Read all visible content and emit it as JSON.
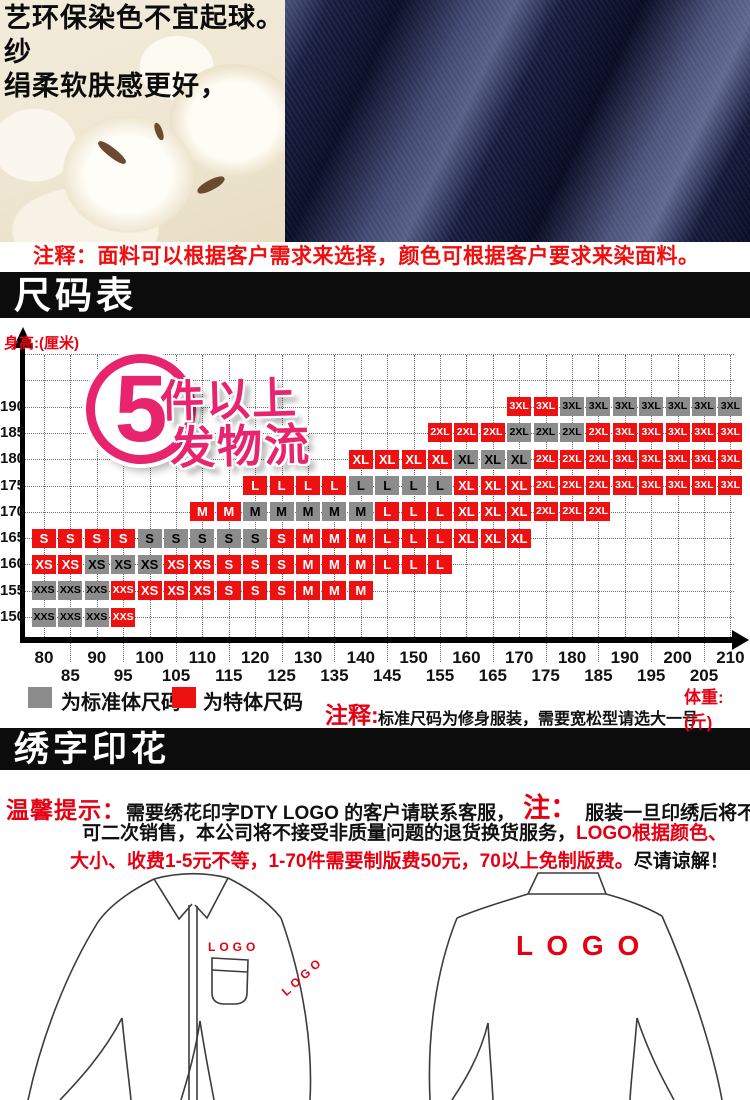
{
  "colors": {
    "special_red": "#ee1111",
    "standard_gray": "#8c8c8c",
    "accent_pink": "#e8246e",
    "note_red": "#e60012",
    "banner_bg": "#0c0c0c"
  },
  "top": {
    "caption_line1": "艺环保染色不宜起球。纱",
    "caption_line2": "绢柔软肤感更好，"
  },
  "fabric_note": "注释：面料可以根据客户需求来选择，颜色可根据客户要求来染面料。",
  "section1_title": "尺码表",
  "chart_data": {
    "type": "heatmap",
    "title": "尺码表",
    "x_axis": {
      "label": "体重:(斤)",
      "min": 80,
      "max": 210,
      "step": 5
    },
    "y_axis": {
      "label": "身高:(厘米)",
      "ticks": [
        150,
        155,
        160,
        165,
        170,
        175,
        180,
        185,
        190
      ]
    },
    "badge": {
      "number": "5",
      "text1": "件以上",
      "text2": "发物流"
    },
    "legend": [
      {
        "type": "standard",
        "label": "为标准体尺码"
      },
      {
        "type": "special",
        "label": "为特体尺码"
      }
    ],
    "note_prefix": "注释:",
    "note": "标准尺码为修身服装，需要宽松型请选大一号",
    "rows": [
      {
        "height": 190,
        "start": 170,
        "runs": [
          [
            "3XL",
            2,
            "special"
          ],
          [
            "3XL",
            7,
            "standard"
          ]
        ]
      },
      {
        "height": 185,
        "start": 155,
        "runs": [
          [
            "2XL",
            3,
            "special"
          ],
          [
            "2XL",
            3,
            "standard"
          ],
          [
            "2XL",
            1,
            "special"
          ],
          [
            "3XL",
            5,
            "special"
          ]
        ]
      },
      {
        "height": 180,
        "start": 140,
        "runs": [
          [
            "XL",
            4,
            "special"
          ],
          [
            "XL",
            3,
            "standard"
          ],
          [
            "2XL",
            3,
            "special"
          ],
          [
            "3XL",
            5,
            "special"
          ]
        ]
      },
      {
        "height": 175,
        "start": 120,
        "runs": [
          [
            "L",
            4,
            "special"
          ],
          [
            "L",
            4,
            "standard"
          ],
          [
            "XL",
            3,
            "special"
          ],
          [
            "2XL",
            3,
            "special"
          ],
          [
            "3XL",
            5,
            "special"
          ]
        ]
      },
      {
        "height": 170,
        "start": 110,
        "runs": [
          [
            "M",
            2,
            "special"
          ],
          [
            "M",
            5,
            "standard"
          ],
          [
            "L",
            3,
            "special"
          ],
          [
            "XL",
            3,
            "special"
          ],
          [
            "2XL",
            3,
            "special"
          ]
        ]
      },
      {
        "height": 165,
        "start": 80,
        "runs": [
          [
            "S",
            4,
            "special"
          ],
          [
            "S",
            5,
            "standard"
          ],
          [
            "S",
            1,
            "special"
          ],
          [
            "M",
            3,
            "special"
          ],
          [
            "L",
            3,
            "special"
          ],
          [
            "XL",
            3,
            "special"
          ]
        ]
      },
      {
        "height": 160,
        "start": 80,
        "runs": [
          [
            "XS",
            2,
            "special"
          ],
          [
            "XS",
            3,
            "standard"
          ],
          [
            "XS",
            2,
            "special"
          ],
          [
            "S",
            3,
            "special"
          ],
          [
            "M",
            3,
            "special"
          ],
          [
            "L",
            3,
            "special"
          ]
        ]
      },
      {
        "height": 155,
        "start": 80,
        "runs": [
          [
            "XXS",
            3,
            "standard"
          ],
          [
            "XXS",
            1,
            "special"
          ],
          [
            "XS",
            3,
            "special"
          ],
          [
            "S",
            3,
            "special"
          ],
          [
            "M",
            3,
            "special"
          ]
        ]
      },
      {
        "height": 150,
        "start": 80,
        "runs": [
          [
            "XXS",
            3,
            "standard"
          ],
          [
            "XXS",
            1,
            "special"
          ]
        ]
      }
    ]
  },
  "section2_title": "绣字印花",
  "tips": {
    "prefix": "温馨提示：",
    "l1_black": "需要绣花印字DTY LOGO 的客户请联系客服，",
    "l1_note": "注：",
    "l1_tail": "服装一旦印绣后将不",
    "l2_black": "可二次销售，本公司将不接受非质量问题的退货换货服务，",
    "l2_red": "LOGO根据颜色、",
    "l3_red": "大小、收费1-5元不等，1-70件需要制版费50元，70以上免制版费。",
    "l3_black": "尽请谅解！"
  },
  "shirts": {
    "front_chest_logo": "LOGO",
    "front_sleeve_logo": "LOGO",
    "back_logo": "L O G O"
  }
}
